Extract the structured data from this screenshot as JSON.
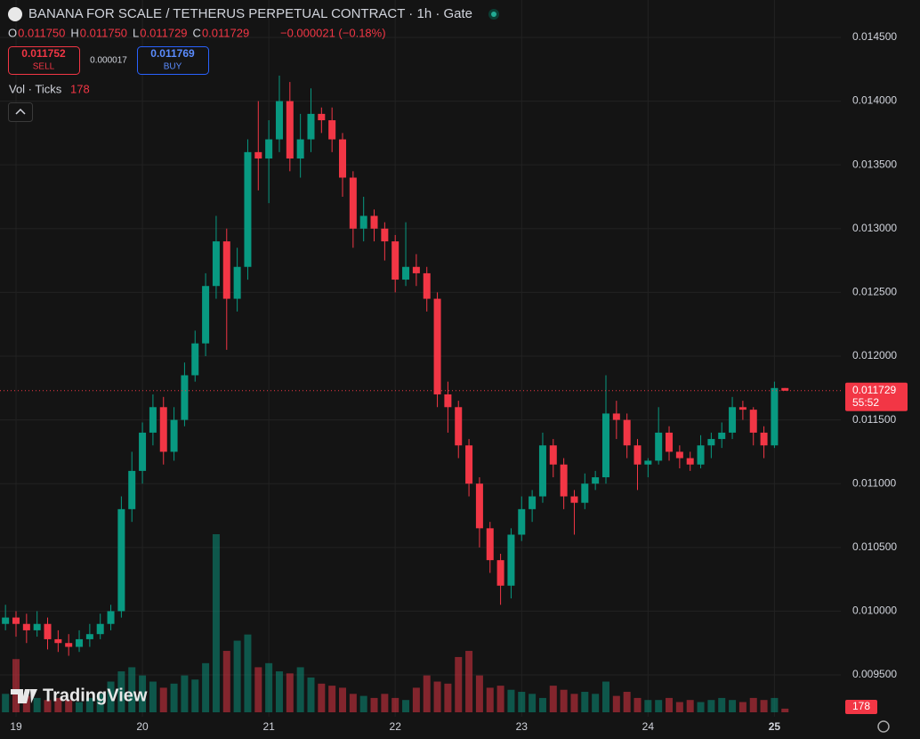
{
  "header": {
    "title": "BANANA FOR SCALE / TETHERUS PERPETUAL CONTRACT · 1h · Gate",
    "ohlc": [
      [
        "O",
        "0.011750"
      ],
      [
        "H",
        "0.011750"
      ],
      [
        "L",
        "0.011729"
      ],
      [
        "C",
        "0.011729"
      ]
    ],
    "change": "−0.000021 (−0.18%)",
    "sell": {
      "price": "0.011752",
      "label": "SELL"
    },
    "spread": "0.000017",
    "buy": {
      "price": "0.011769",
      "label": "BUY"
    },
    "volume_label": "Vol · Ticks",
    "countdown": "55:52",
    "brand": "TradingView"
  },
  "chart_data": {
    "type": "candlestick",
    "title": "BANANA FOR SCALE / TETHERUS PERPETUAL CONTRACT · 1h · Gate",
    "x": [
      -2,
      0,
      2,
      4,
      6,
      8,
      10,
      12,
      14,
      16,
      18,
      20,
      22,
      24,
      26,
      28,
      30,
      32,
      34,
      36,
      38,
      40,
      42,
      44,
      46,
      48,
      50,
      52,
      54,
      56,
      58,
      60,
      62,
      64,
      66,
      68,
      70,
      72,
      74,
      76,
      78,
      80,
      82,
      84,
      86,
      88,
      90,
      92,
      94,
      96,
      98,
      100,
      102,
      104,
      106,
      108,
      110,
      112,
      114,
      116,
      118,
      120,
      122,
      124,
      126,
      128,
      130,
      132,
      134,
      136,
      138,
      140,
      142,
      144,
      146
    ],
    "open": [
      0.0099,
      0.00995,
      0.0099,
      0.00985,
      0.0099,
      0.00978,
      0.00975,
      0.00972,
      0.00978,
      0.00982,
      0.0099,
      0.01,
      0.0108,
      0.0111,
      0.0114,
      0.0116,
      0.01125,
      0.0115,
      0.01185,
      0.0121,
      0.01255,
      0.0129,
      0.01245,
      0.0127,
      0.0136,
      0.01355,
      0.0137,
      0.014,
      0.01355,
      0.0137,
      0.0139,
      0.01385,
      0.0137,
      0.0134,
      0.013,
      0.0131,
      0.013,
      0.0129,
      0.0126,
      0.0127,
      0.01265,
      0.01245,
      0.0117,
      0.0116,
      0.0113,
      0.011,
      0.01065,
      0.0104,
      0.0102,
      0.0106,
      0.0108,
      0.0109,
      0.0113,
      0.01115,
      0.0109,
      0.01085,
      0.011,
      0.01105,
      0.01155,
      0.0115,
      0.0113,
      0.01115,
      0.01118,
      0.0114,
      0.01125,
      0.0112,
      0.01115,
      0.0113,
      0.01135,
      0.0114,
      0.0116,
      0.01158,
      0.0114,
      0.0113,
      0.01175
    ],
    "high": [
      0.01005,
      0.01,
      0.00998,
      0.01,
      0.00995,
      0.00985,
      0.00982,
      0.00985,
      0.0099,
      0.00998,
      0.01005,
      0.0109,
      0.01125,
      0.01148,
      0.0117,
      0.01168,
      0.0116,
      0.01195,
      0.0122,
      0.01265,
      0.0131,
      0.013,
      0.01285,
      0.0137,
      0.014,
      0.01385,
      0.0142,
      0.01415,
      0.0139,
      0.0141,
      0.01395,
      0.01395,
      0.01375,
      0.01345,
      0.01325,
      0.01315,
      0.01305,
      0.01295,
      0.01305,
      0.0128,
      0.0127,
      0.0125,
      0.0118,
      0.01165,
      0.01135,
      0.01105,
      0.0107,
      0.01045,
      0.01065,
      0.0109,
      0.01095,
      0.0114,
      0.01135,
      0.0112,
      0.01095,
      0.01108,
      0.0111,
      0.01185,
      0.01165,
      0.01155,
      0.01135,
      0.0112,
      0.0116,
      0.01145,
      0.0113,
      0.01125,
      0.01138,
      0.0114,
      0.01148,
      0.01168,
      0.01165,
      0.0116,
      0.01145,
      0.0118,
      0.01175
    ],
    "low": [
      0.00985,
      0.0098,
      0.00975,
      0.0098,
      0.0097,
      0.00968,
      0.00965,
      0.00968,
      0.00972,
      0.00978,
      0.00985,
      0.00995,
      0.0107,
      0.011,
      0.0113,
      0.01115,
      0.01118,
      0.01145,
      0.0118,
      0.012,
      0.01245,
      0.01205,
      0.01235,
      0.0126,
      0.0133,
      0.0132,
      0.0136,
      0.01345,
      0.0134,
      0.0136,
      0.01375,
      0.0136,
      0.01325,
      0.01285,
      0.0129,
      0.0129,
      0.01275,
      0.0125,
      0.01255,
      0.01255,
      0.01235,
      0.0116,
      0.0114,
      0.0112,
      0.0109,
      0.0105,
      0.0103,
      0.01005,
      0.0101,
      0.01055,
      0.0107,
      0.01085,
      0.01105,
      0.0108,
      0.0106,
      0.0108,
      0.01095,
      0.011,
      0.01135,
      0.0112,
      0.01095,
      0.01105,
      0.01115,
      0.01118,
      0.01112,
      0.0111,
      0.01112,
      0.0112,
      0.01128,
      0.01135,
      0.0115,
      0.0113,
      0.0112,
      0.01128,
      0.011729
    ],
    "close": [
      0.00995,
      0.0099,
      0.00985,
      0.0099,
      0.00978,
      0.00975,
      0.00972,
      0.00978,
      0.00982,
      0.0099,
      0.01,
      0.0108,
      0.0111,
      0.0114,
      0.0116,
      0.01125,
      0.0115,
      0.01185,
      0.0121,
      0.01255,
      0.0129,
      0.01245,
      0.0127,
      0.0136,
      0.01355,
      0.0137,
      0.014,
      0.01355,
      0.0137,
      0.0139,
      0.01385,
      0.0137,
      0.0134,
      0.013,
      0.0131,
      0.013,
      0.0129,
      0.0126,
      0.0127,
      0.01265,
      0.01245,
      0.0117,
      0.0116,
      0.0113,
      0.011,
      0.01065,
      0.0104,
      0.0102,
      0.0106,
      0.0108,
      0.0109,
      0.0113,
      0.01115,
      0.0109,
      0.01085,
      0.011,
      0.01105,
      0.01155,
      0.0115,
      0.0113,
      0.01115,
      0.01118,
      0.0114,
      0.01125,
      0.0112,
      0.01115,
      0.0113,
      0.01135,
      0.0114,
      0.0116,
      0.01158,
      0.0114,
      0.0113,
      0.01175,
      0.011729
    ],
    "volume": [
      900,
      2600,
      800,
      700,
      600,
      700,
      600,
      500,
      700,
      900,
      1500,
      2000,
      2200,
      1800,
      1500,
      1200,
      1400,
      1800,
      1600,
      2400,
      8700,
      3000,
      3500,
      3800,
      2200,
      2400,
      2000,
      1900,
      2200,
      1700,
      1400,
      1300,
      1200,
      900,
      800,
      700,
      900,
      700,
      600,
      1200,
      1800,
      1500,
      1400,
      2700,
      3000,
      1800,
      1200,
      1300,
      1100,
      1000,
      900,
      700,
      1300,
      1100,
      900,
      1000,
      900,
      1500,
      800,
      1000,
      700,
      600,
      600,
      700,
      500,
      600,
      500,
      600,
      700,
      600,
      500,
      700,
      600,
      700,
      178
    ],
    "up_color": "#089981",
    "down_color": "#f23645",
    "xlim": [
      -3.04,
      156.6
    ],
    "ylim": [
      0.009172,
      0.014793
    ],
    "xticks": [
      {
        "value": 0,
        "label": "19"
      },
      {
        "value": 24,
        "label": "20"
      },
      {
        "value": 48,
        "label": "21"
      },
      {
        "value": 72,
        "label": "22"
      },
      {
        "value": 96,
        "label": "23"
      },
      {
        "value": 120,
        "label": "24"
      },
      {
        "value": 144,
        "label": "25"
      }
    ],
    "yticks": [
      {
        "value": 0.0095,
        "label": "0.009500"
      },
      {
        "value": 0.01,
        "label": "0.010000"
      },
      {
        "value": 0.0105,
        "label": "0.010500"
      },
      {
        "value": 0.011,
        "label": "0.011000"
      },
      {
        "value": 0.0115,
        "label": "0.011500"
      },
      {
        "value": 0.012,
        "label": "0.012000"
      },
      {
        "value": 0.0125,
        "label": "0.012500"
      },
      {
        "value": 0.013,
        "label": "0.013000"
      },
      {
        "value": 0.0135,
        "label": "0.013500"
      },
      {
        "value": 0.014,
        "label": "0.014000"
      },
      {
        "value": 0.0145,
        "label": "0.014500"
      }
    ],
    "grid": true
  }
}
